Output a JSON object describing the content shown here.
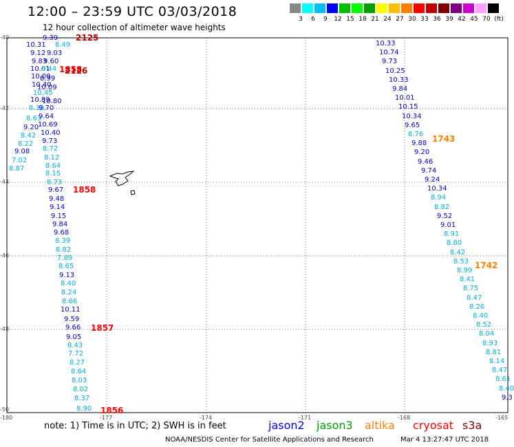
{
  "title": "12:00 – 23:59 UTC 03/03/2018",
  "subtitle": "12 hour collection of altimeter wave heights",
  "scale": {
    "colors": [
      "#888888",
      "#00ffff",
      "#00bfff",
      "#0000ff",
      "#00c000",
      "#00ff00",
      "#00a000",
      "#ffff00",
      "#ffc000",
      "#ff8000",
      "#ff0000",
      "#c00000",
      "#800000",
      "#800080",
      "#d000d0",
      "#ffa0ff",
      "#000000"
    ],
    "labels": [
      "3",
      "6",
      "9",
      "12",
      "15",
      "18",
      "21",
      "24",
      "27",
      "30",
      "33",
      "36",
      "39",
      "42",
      "45",
      "70",
      "(ft)"
    ]
  },
  "ticks": {
    "lat": [
      "-40",
      "-42",
      "-44",
      "-46",
      "-48",
      "-50"
    ],
    "lon": [
      "-180",
      "-177",
      "-174",
      "-171",
      "-168",
      "-165"
    ]
  },
  "track1": {
    "values": [
      "9.39",
      "8.49",
      "10.31",
      "9.12",
      "9.03",
      "9.83",
      "9.60",
      "10.01",
      "8.44",
      "10.09",
      "8.99",
      "10.40",
      "10.09",
      "10.45",
      "10.89",
      "10.80",
      "8.39",
      "9.70",
      "8.63",
      "9.64",
      "9.20",
      "10.69",
      "8.42",
      "10.40",
      "8.22",
      "9.73",
      "9.08",
      "8.72",
      "7.02",
      "8.12",
      "8.87",
      "8.64",
      "8.15",
      "8.73",
      "9.67",
      "9.48",
      "9.14",
      "9.15",
      "9.84",
      "9.68",
      "8.39",
      "8.82",
      "7.89",
      "8.65",
      "9.13",
      "8.40",
      "8.24",
      "8.66",
      "10.11",
      "9.59",
      "9.66",
      "9.05",
      "8.43",
      "7.72",
      "8.27",
      "8.64",
      "8.03",
      "8.02",
      "8.37",
      "8.90"
    ],
    "colors": [
      "d",
      "c",
      "d",
      "d",
      "d",
      "d",
      "d",
      "d",
      "c",
      "d",
      "d",
      "d",
      "d",
      "c",
      "d",
      "d",
      "c",
      "d",
      "c",
      "d",
      "d",
      "d",
      "c",
      "d",
      "c",
      "d",
      "d",
      "c",
      "c",
      "c",
      "c",
      "c",
      "c",
      "c",
      "d",
      "d",
      "d",
      "d",
      "d",
      "d",
      "c",
      "c",
      "c",
      "c",
      "d",
      "c",
      "c",
      "c",
      "d",
      "d",
      "d",
      "d",
      "c",
      "c",
      "c",
      "c",
      "c",
      "c",
      "c",
      "c"
    ]
  },
  "track2": {
    "values": [
      "10.33",
      "10.74",
      "9.73",
      "10.25",
      "10.33",
      "9.84",
      "10.01",
      "10.15",
      "10.34",
      "9.65",
      "8.76",
      "9.88",
      "9.20",
      "9.46",
      "9.74",
      "9.24",
      "10.34",
      "8.94",
      "8.82",
      "9.52",
      "9.01",
      "8.91",
      "8.80",
      "8.42",
      "8.53",
      "8.99",
      "8.41",
      "8.75",
      "8.47",
      "8.26",
      "8.40",
      "8.52",
      "8.04",
      "8.93",
      "8.81",
      "8.14",
      "8.47",
      "8.61",
      "8.40",
      "9.3"
    ],
    "colors": [
      "d",
      "d",
      "d",
      "d",
      "d",
      "d",
      "d",
      "d",
      "d",
      "d",
      "c",
      "d",
      "d",
      "d",
      "d",
      "d",
      "d",
      "c",
      "c",
      "d",
      "d",
      "c",
      "c",
      "c",
      "c",
      "c",
      "c",
      "c",
      "c",
      "c",
      "c",
      "c",
      "c",
      "c",
      "c",
      "c",
      "c",
      "c",
      "c",
      "d"
    ]
  },
  "times": [
    {
      "text": "2125",
      "color": "#c00000"
    },
    {
      "text": "1858",
      "color": "#ff0000"
    },
    {
      "text": "2126",
      "color": "#c00000"
    },
    {
      "text": "1858",
      "color": "#ff0000"
    },
    {
      "text": "1857",
      "color": "#ff0000"
    },
    {
      "text": "1856",
      "color": "#ff0000"
    },
    {
      "text": "1743",
      "color": "#ff8000"
    },
    {
      "text": "1742",
      "color": "#ff8000"
    }
  ],
  "note": "note:  1) Time is in UTC;  2) SWH is in feet",
  "legend": [
    {
      "text": "jason2",
      "color": "#0000ff"
    },
    {
      "text": "jason3",
      "color": "#00a000"
    },
    {
      "text": "altika",
      "color": "#ff8000"
    },
    {
      "text": "cryosat",
      "color": "#ff0000"
    },
    {
      "text": "s3a",
      "color": "#800000"
    }
  ],
  "credit": "NOAA/NESDIS Center for Satellite Applications and Research",
  "stamp": "Mar  4 13:27:47 UTC 2018"
}
